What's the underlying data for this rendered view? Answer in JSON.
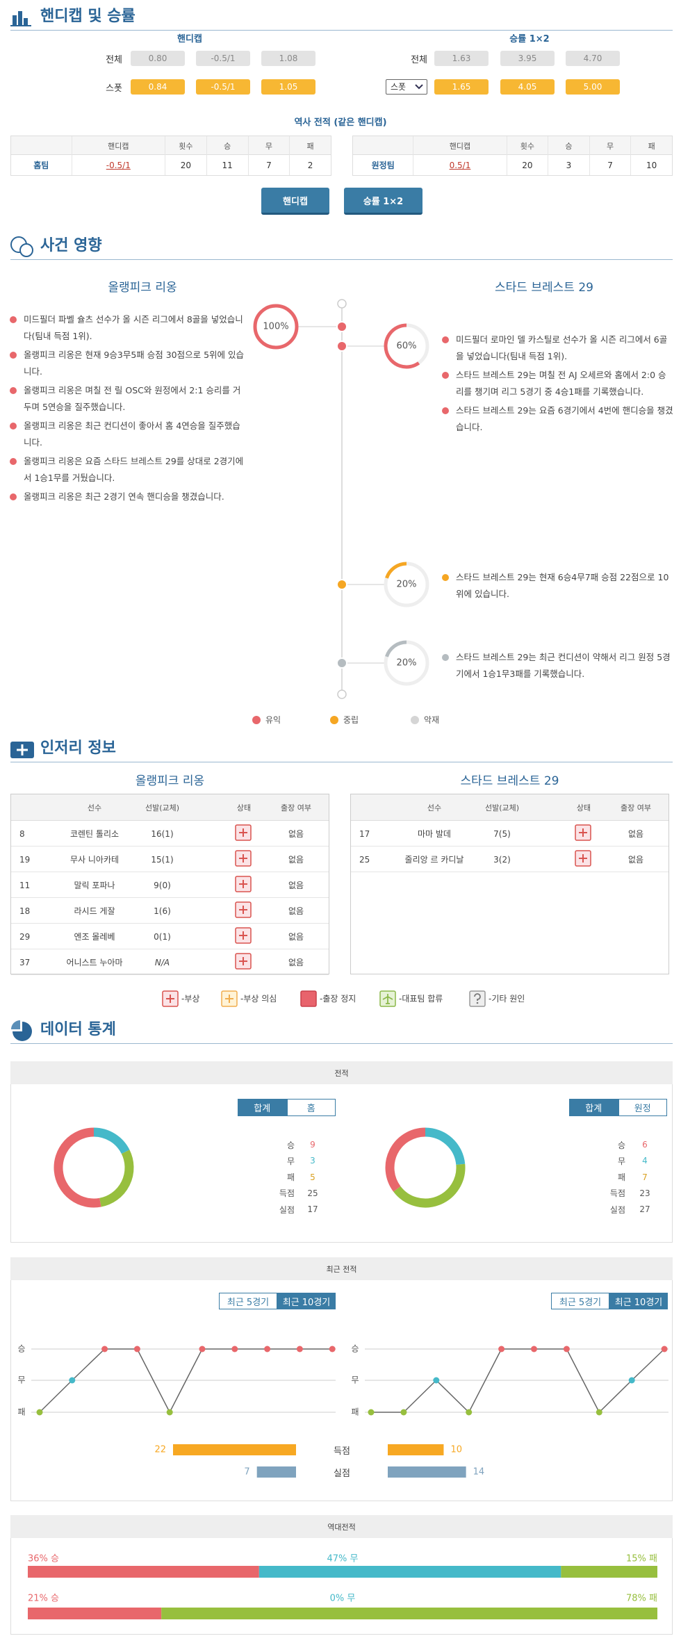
{
  "odds": {
    "title": "핸디캡 및 승률",
    "handicap": {
      "title": "핸디캡",
      "rows": [
        {
          "label": "전체",
          "values": [
            "0.80",
            "-0.5/1",
            "1.08"
          ]
        },
        {
          "label": "스폿",
          "values": [
            "0.84",
            "-0.5/1",
            "1.05"
          ]
        }
      ]
    },
    "win_rate": {
      "title": "승률 1×2",
      "rows": [
        {
          "label": "전체",
          "values": [
            "1.63",
            "3.95",
            "4.70"
          ]
        },
        {
          "label": "스폿",
          "values": [
            "1.65",
            "4.05",
            "5.00"
          ]
        }
      ]
    }
  },
  "history": {
    "title": "역사 전적 (같은 핸디캡)",
    "headers": [
      "핸디캡",
      "횟수",
      "승",
      "무",
      "패"
    ],
    "tables": [
      {
        "team": "홈팀",
        "handicap": "-0.5/1",
        "counts": [
          20,
          11,
          7,
          2
        ]
      },
      {
        "team": "원정팀",
        "handicap": "0.5/1",
        "counts": [
          20,
          3,
          7,
          10
        ]
      }
    ]
  },
  "buttons": [
    "핸디캡",
    "승률 1×2"
  ],
  "events": {
    "title": "사건 영향",
    "home": {
      "name": "올랭피크 리옹",
      "color": "#e8676b",
      "gauge": {
        "value": 100,
        "label": "100%"
      },
      "items": [
        "미드필더 파벨 슐츠 선수가 올 시즌 리그에서 8골을 넣었습니다(팀내 득점 1위).",
        "올랭피크 리옹은 현재 9승3무5패 승점 30점으로 5위에 있습니다.",
        "올랭피크 리옹은 며칠 전 릴 OSC와 원정에서 2:1 승리를 거두며 5연승을 질주했습니다.",
        "올랭피크 리옹은 최근 컨디션이 좋아서 홈 4연승을 질주했습니다.",
        "올랭피크 리옹은 요즘 스타드 브레스트 29를 상대로 2경기에서 1승1무를 거뒀습니다.",
        "올랭피크 리옹은 최근 2경기 연속 핸디승을 챙겼습니다."
      ]
    },
    "away": {
      "name": "스타드 브레스트 29",
      "groups": [
        {
          "color": "#e8676b",
          "gauge": {
            "value": 60,
            "label": "60%"
          },
          "items": [
            "미드필더 로마인 델 카스틸로 선수가 올 시즌 리그에서 6골을 넣었습니다(팀내 득점 1위).",
            "스타드 브레스트 29는 며칠 전 AJ 오세르와 홈에서 2:0 승리를 챙기며 리그 5경기 중 4승1패를 기록했습니다.",
            "스타드 브레스트 29는 요즘 6경기에서 4번에 핸디승을 챙겼습니다."
          ]
        },
        {
          "color": "#f5a623",
          "gauge": {
            "value": 20,
            "label": "20%"
          },
          "items": [
            "스타드 브레스트 29는 현재 6승4무7패 승점 22점으로 10위에 있습니다."
          ]
        },
        {
          "color": "#b5bcc0",
          "gauge": {
            "value": 20,
            "label": "20%"
          },
          "items": [
            "스타드 브레스트 29는 최근 컨디션이 약해서 리그 원정 5경기에서 1승1무3패를 기록했습니다."
          ]
        }
      ]
    },
    "legend": [
      {
        "label": "유익",
        "color": "#e8676b"
      },
      {
        "label": "중립",
        "color": "#f5a623"
      },
      {
        "label": "악재",
        "color": "#d5d5d5"
      }
    ]
  },
  "injury": {
    "title": "인저리 정보",
    "headers": [
      "선수",
      "선발(교체)",
      "상태",
      "출장 여부"
    ],
    "teams": [
      {
        "name": "올랭피크 리옹",
        "players": [
          {
            "number": 8,
            "name": "코렌틴 톨리소",
            "apps": "16(1)",
            "status": "injury",
            "available": "없음"
          },
          {
            "number": 19,
            "name": "무사 니아카테",
            "apps": "15(1)",
            "status": "injury",
            "available": "없음"
          },
          {
            "number": 11,
            "name": "말릭 포파나",
            "apps": "9(0)",
            "status": "injury",
            "available": "없음"
          },
          {
            "number": 18,
            "name": "라시드 게잘",
            "apps": "1(6)",
            "status": "injury",
            "available": "없음"
          },
          {
            "number": 29,
            "name": "엔조 몰레베",
            "apps": "0(1)",
            "status": "injury",
            "available": "없음"
          },
          {
            "number": 37,
            "name": "어니스트 누아마",
            "apps": "N/A",
            "status": "injury",
            "available": "없음"
          }
        ]
      },
      {
        "name": "스타드 브레스트 29",
        "players": [
          {
            "number": 17,
            "name": "마마 발데",
            "apps": "7(5)",
            "status": "injury",
            "available": "없음"
          },
          {
            "number": 25,
            "name": "줄리앙 르 카디날",
            "apps": "3(2)",
            "status": "injury",
            "available": "없음"
          }
        ]
      }
    ],
    "legend": [
      {
        "status": "injury",
        "label": "-부상"
      },
      {
        "status": "doubtful",
        "label": "-부상 의심"
      },
      {
        "status": "suspension",
        "label": "-출장 정지"
      },
      {
        "status": "national",
        "label": "-대표팀 합류"
      },
      {
        "status": "other",
        "label": "-기타 원인"
      }
    ]
  },
  "stats": {
    "title": "데이터 통계",
    "record": {
      "title": "전적",
      "labels": [
        "승",
        "무",
        "패",
        "득점",
        "실점"
      ],
      "colors": [
        "#e8676b",
        "#45b9c9",
        "#97bf3e"
      ],
      "value_colors": [
        "#e8676b",
        "#45b9c9",
        "#d9a020"
      ],
      "teams": [
        {
          "tabs": [
            "합계",
            "홈"
          ],
          "values": [
            9,
            3,
            5,
            25,
            17
          ]
        },
        {
          "tabs": [
            "합계",
            "원정"
          ],
          "values": [
            6,
            4,
            7,
            23,
            27
          ]
        }
      ]
    },
    "recent": {
      "title": "최근 전적",
      "tabs": [
        "최근 5경기",
        "최근 10경기"
      ],
      "y_labels": [
        "승",
        "무",
        "패"
      ],
      "teams": [
        {
          "results": [
            "패",
            "무",
            "승",
            "승",
            "패",
            "승",
            "승",
            "승",
            "승",
            "승"
          ]
        },
        {
          "results": [
            "패",
            "패",
            "무",
            "패",
            "승",
            "승",
            "승",
            "패",
            "무",
            "승"
          ]
        }
      ],
      "goals": {
        "labels": [
          "득점",
          "실점"
        ],
        "colors": [
          "#f7a823",
          "#7fa3be"
        ],
        "teams": [
          [
            22,
            7
          ],
          [
            10,
            14
          ]
        ]
      }
    },
    "h2h": {
      "title": "역대전적",
      "colors": [
        "#e8676b",
        "#45b9c9",
        "#97bf3e"
      ],
      "rows": [
        {
          "values": [
            36,
            47,
            15
          ],
          "value_labels": [
            "36% 승",
            "47% 무",
            "15% 패"
          ]
        },
        {
          "values": [
            21,
            0,
            78
          ],
          "value_labels": [
            "21% 승",
            "0% 무",
            "78% 패"
          ]
        }
      ]
    }
  }
}
